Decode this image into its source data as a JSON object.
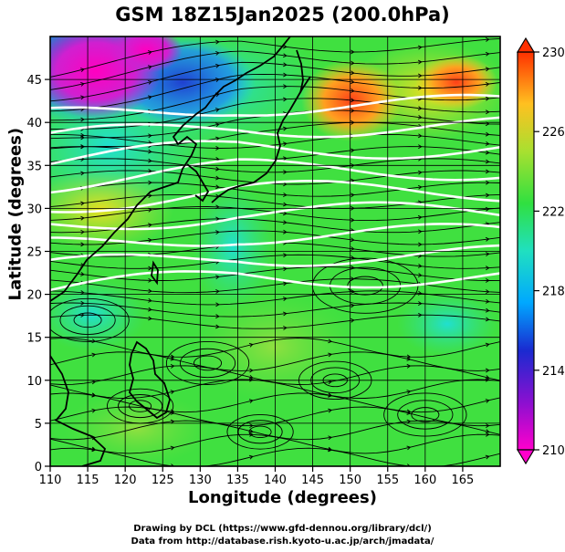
{
  "title": "GSM 18Z15Jan2025 (200.0hPa)",
  "xlabel": "Longitude (degrees)",
  "ylabel": "Latitude  (degrees)",
  "credit_line1": "Drawing by DCL (https://www.gfd-dennou.org/library/dcl/)",
  "credit_line2": "Data from http://database.rish.kyoto-u.ac.jp/arch/jmadata/",
  "chart_data": {
    "type": "heatmap",
    "description_fields": "temperature shading with streamlines and white contours",
    "xlim": [
      110,
      170
    ],
    "ylim": [
      0,
      50
    ],
    "x_ticks": [
      "110",
      "115",
      "120",
      "125",
      "130",
      "135",
      "140",
      "145",
      "150",
      "155",
      "160",
      "165"
    ],
    "y_ticks": [
      "0",
      "5",
      "10",
      "15",
      "20",
      "25",
      "30",
      "35",
      "40",
      "45"
    ],
    "colorbar": {
      "min": 210,
      "max": 230,
      "tick_labels": [
        "230",
        "226",
        "222",
        "218",
        "214",
        "210"
      ],
      "tick_values": [
        230,
        226,
        222,
        218,
        214,
        210
      ],
      "colors": [
        "#ff00cc",
        "#2020c8",
        "#00b0ff",
        "#20e0c0",
        "#40e040",
        "#a8e030",
        "#ffc020",
        "#ff3000"
      ]
    },
    "grid": true,
    "contour_latitudes": [
      22,
      24.5,
      27,
      29.5,
      32,
      34.5,
      37,
      39.5,
      42
    ],
    "colors": {
      "warm_core": "#ff5a1e",
      "cold_core": "#e010c0",
      "background": "#40e040"
    }
  }
}
